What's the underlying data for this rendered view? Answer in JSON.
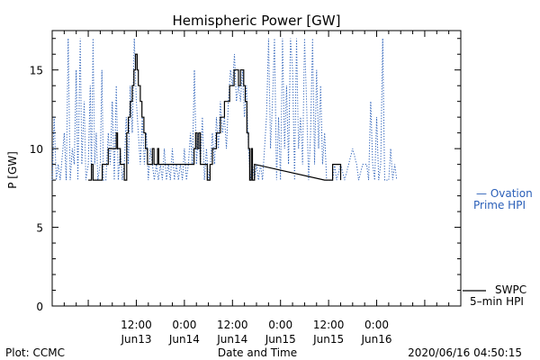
{
  "chart_data": {
    "type": "line",
    "title": "Hemispheric Power [GW]",
    "ylabel": "P [GW]",
    "xlabel": "Date and Time",
    "ylim": [
      0,
      17.5
    ],
    "y_ticks": [
      0,
      5,
      10,
      15
    ],
    "x_range_hours": [
      -9,
      93
    ],
    "x_ticks": [
      {
        "h": 12,
        "line1": "12:00",
        "line2": "Jun13"
      },
      {
        "h": 24,
        "line1": "0:00",
        "line2": "Jun14"
      },
      {
        "h": 36,
        "line1": "12:00",
        "line2": "Jun14"
      },
      {
        "h": 48,
        "line1": "0:00",
        "line2": "Jun15"
      },
      {
        "h": 60,
        "line1": "12:00",
        "line2": "Jun15"
      },
      {
        "h": 72,
        "line1": "0:00",
        "line2": "Jun16"
      }
    ],
    "series": [
      {
        "name": "SWPC 5-min HPI",
        "color": "#000000",
        "style": "solid",
        "points": [
          [
            0,
            8
          ],
          [
            0.8,
            8
          ],
          [
            0.8,
            9
          ],
          [
            1.2,
            9
          ],
          [
            1.2,
            8
          ],
          [
            3.5,
            8
          ],
          [
            3.5,
            9
          ],
          [
            5,
            9
          ],
          [
            5,
            10
          ],
          [
            7,
            10
          ],
          [
            7,
            11
          ],
          [
            7.3,
            11
          ],
          [
            7.3,
            10
          ],
          [
            8,
            10
          ],
          [
            8,
            9
          ],
          [
            9,
            9
          ],
          [
            9,
            8
          ],
          [
            9.6,
            8
          ],
          [
            9.6,
            11
          ],
          [
            10,
            11
          ],
          [
            10,
            12
          ],
          [
            10.5,
            12
          ],
          [
            10.5,
            13
          ],
          [
            11,
            13
          ],
          [
            11,
            14
          ],
          [
            11.4,
            14
          ],
          [
            11.4,
            15
          ],
          [
            11.8,
            15
          ],
          [
            11.8,
            16
          ],
          [
            12.2,
            16
          ],
          [
            12.2,
            15
          ],
          [
            12.5,
            15
          ],
          [
            12.5,
            14
          ],
          [
            13,
            14
          ],
          [
            13,
            13
          ],
          [
            13.4,
            13
          ],
          [
            13.4,
            12
          ],
          [
            13.9,
            12
          ],
          [
            13.9,
            11
          ],
          [
            14.3,
            11
          ],
          [
            14.3,
            10
          ],
          [
            14.8,
            10
          ],
          [
            14.8,
            9
          ],
          [
            16,
            9
          ],
          [
            16,
            10
          ],
          [
            16.4,
            10
          ],
          [
            16.4,
            9
          ],
          [
            17.3,
            9
          ],
          [
            17.3,
            10
          ],
          [
            17.6,
            10
          ],
          [
            17.6,
            9
          ],
          [
            26.4,
            9
          ],
          [
            26.4,
            10
          ],
          [
            26.8,
            10
          ],
          [
            26.8,
            11
          ],
          [
            27.2,
            11
          ],
          [
            27.2,
            10
          ],
          [
            27.6,
            10
          ],
          [
            27.6,
            11
          ],
          [
            28,
            11
          ],
          [
            28,
            9
          ],
          [
            29.7,
            9
          ],
          [
            29.7,
            8
          ],
          [
            30.4,
            8
          ],
          [
            30.4,
            9
          ],
          [
            31,
            9
          ],
          [
            31,
            10
          ],
          [
            32,
            10
          ],
          [
            32,
            11
          ],
          [
            33,
            11
          ],
          [
            33,
            12
          ],
          [
            34,
            12
          ],
          [
            34,
            13
          ],
          [
            35.3,
            13
          ],
          [
            35.3,
            14
          ],
          [
            36.4,
            14
          ],
          [
            36.4,
            15
          ],
          [
            37.5,
            15
          ],
          [
            37.5,
            14
          ],
          [
            38,
            14
          ],
          [
            38,
            15
          ],
          [
            38.8,
            15
          ],
          [
            38.8,
            14
          ],
          [
            39.2,
            14
          ],
          [
            39.2,
            13
          ],
          [
            39.6,
            13
          ],
          [
            39.6,
            11
          ],
          [
            40,
            11
          ],
          [
            40,
            10
          ],
          [
            40.3,
            10
          ],
          [
            40.3,
            8
          ],
          [
            40.7,
            8
          ],
          [
            40.7,
            10
          ],
          [
            41,
            10
          ],
          [
            41,
            8
          ],
          [
            41.5,
            8
          ],
          [
            41.5,
            9
          ],
          [
            59,
            8
          ],
          [
            61,
            8
          ],
          [
            61,
            9
          ],
          [
            63,
            9
          ],
          [
            63,
            8
          ]
        ]
      },
      {
        "name": "Ovation Prime HPI",
        "color": "#2a5fb8",
        "style": "dotted",
        "points": [
          [
            -9,
            8
          ],
          [
            -8.5,
            12
          ],
          [
            -8,
            8
          ],
          [
            -7.5,
            9
          ],
          [
            -7,
            8
          ],
          [
            -6,
            11
          ],
          [
            -5.5,
            8
          ],
          [
            -5,
            17
          ],
          [
            -4.5,
            8
          ],
          [
            -4,
            10
          ],
          [
            -3.5,
            9
          ],
          [
            -3,
            15
          ],
          [
            -2.6,
            8
          ],
          [
            -2,
            17
          ],
          [
            -1.6,
            9
          ],
          [
            -1,
            13
          ],
          [
            -0.6,
            8
          ],
          [
            0,
            9
          ],
          [
            0.5,
            14
          ],
          [
            0.8,
            8
          ],
          [
            1.2,
            17
          ],
          [
            1.6,
            9
          ],
          [
            2,
            11
          ],
          [
            2.4,
            8
          ],
          [
            3,
            9
          ],
          [
            3.4,
            15
          ],
          [
            3.8,
            8
          ],
          [
            4.4,
            8
          ],
          [
            5,
            11
          ],
          [
            5.5,
            9
          ],
          [
            6,
            13
          ],
          [
            6.5,
            8
          ],
          [
            7,
            14
          ],
          [
            7.5,
            8
          ],
          [
            8,
            10
          ],
          [
            8.5,
            8
          ],
          [
            9,
            9
          ],
          [
            9.5,
            12
          ],
          [
            10,
            9
          ],
          [
            10.5,
            14
          ],
          [
            11,
            11
          ],
          [
            11.5,
            17
          ],
          [
            12,
            13
          ],
          [
            12.5,
            11
          ],
          [
            13,
            9
          ],
          [
            13.5,
            12
          ],
          [
            14,
            9
          ],
          [
            14.5,
            11
          ],
          [
            15,
            8
          ],
          [
            15.5,
            10
          ],
          [
            16,
            9
          ],
          [
            16.5,
            8
          ],
          [
            17,
            9
          ],
          [
            17.5,
            8
          ],
          [
            18,
            9
          ],
          [
            18.5,
            8
          ],
          [
            19,
            10
          ],
          [
            19.5,
            8
          ],
          [
            20,
            9
          ],
          [
            20.5,
            8
          ],
          [
            21,
            10
          ],
          [
            21.5,
            8
          ],
          [
            22,
            9
          ],
          [
            22.5,
            8
          ],
          [
            23,
            9
          ],
          [
            23.5,
            8
          ],
          [
            24,
            10
          ],
          [
            24.5,
            8
          ],
          [
            25,
            9
          ],
          [
            25.5,
            11
          ],
          [
            26,
            9
          ],
          [
            26.5,
            15
          ],
          [
            27,
            9
          ],
          [
            27.5,
            11
          ],
          [
            28,
            9
          ],
          [
            28.5,
            12
          ],
          [
            29,
            8
          ],
          [
            29.5,
            10
          ],
          [
            30,
            8
          ],
          [
            30.5,
            9
          ],
          [
            31,
            11
          ],
          [
            31.5,
            9
          ],
          [
            32,
            12
          ],
          [
            32.5,
            10
          ],
          [
            33,
            13
          ],
          [
            33.5,
            11
          ],
          [
            34,
            12
          ],
          [
            34.5,
            10
          ],
          [
            35,
            13
          ],
          [
            35.5,
            15
          ],
          [
            36,
            14
          ],
          [
            36.5,
            16
          ],
          [
            37,
            13
          ],
          [
            37.5,
            14
          ],
          [
            38,
            13
          ],
          [
            38.5,
            15
          ],
          [
            39,
            12
          ],
          [
            39.5,
            14
          ],
          [
            40,
            10
          ],
          [
            40.5,
            8
          ],
          [
            41,
            9
          ],
          [
            41.5,
            8
          ],
          [
            42,
            9
          ],
          [
            42.5,
            8
          ],
          [
            43,
            9
          ],
          [
            43.5,
            8
          ],
          [
            44,
            10
          ],
          [
            44.5,
            12
          ],
          [
            45,
            17
          ],
          [
            45.5,
            10
          ],
          [
            46,
            13
          ],
          [
            46.5,
            17
          ],
          [
            47,
            8
          ],
          [
            47.5,
            12
          ],
          [
            48,
            8
          ],
          [
            48.5,
            17
          ],
          [
            49,
            10
          ],
          [
            49.5,
            14
          ],
          [
            50,
            9
          ],
          [
            50.5,
            17
          ],
          [
            51,
            15
          ],
          [
            51.5,
            8
          ],
          [
            52,
            17
          ],
          [
            52.5,
            10
          ],
          [
            53,
            12
          ],
          [
            53.5,
            9
          ],
          [
            54,
            17
          ],
          [
            54.5,
            13
          ],
          [
            55,
            8
          ],
          [
            55.5,
            11
          ],
          [
            56,
            17
          ],
          [
            56.5,
            9
          ],
          [
            57,
            15
          ],
          [
            57.5,
            10
          ],
          [
            58,
            14
          ],
          [
            58.5,
            9
          ],
          [
            59,
            11
          ],
          [
            59.5,
            8
          ],
          [
            61,
            8
          ],
          [
            61.5,
            9
          ],
          [
            62,
            8
          ],
          [
            63,
            9
          ],
          [
            64,
            8
          ],
          [
            65,
            9
          ],
          [
            66,
            10
          ],
          [
            67,
            9
          ],
          [
            67.5,
            8
          ],
          [
            68.5,
            9
          ],
          [
            69.5,
            9
          ],
          [
            70,
            8
          ],
          [
            70.5,
            13
          ],
          [
            71,
            9
          ],
          [
            71.5,
            8
          ],
          [
            72,
            12
          ],
          [
            72.5,
            8
          ],
          [
            73,
            9
          ],
          [
            73.5,
            17
          ],
          [
            74,
            8
          ],
          [
            75,
            8
          ],
          [
            75.5,
            10
          ],
          [
            76,
            8
          ],
          [
            76.5,
            9
          ],
          [
            77,
            8
          ]
        ]
      }
    ],
    "grid": false,
    "legend": "right"
  },
  "legend": {
    "ovation_line1": "— Ovation",
    "ovation_line2": "Prime HPI",
    "swpc_line1": "SWPC",
    "swpc_line2": "5–min HPI"
  },
  "footer": {
    "left": "Plot: CCMC",
    "center": "Date and Time",
    "right": "2020/06/16 04:50:15"
  }
}
